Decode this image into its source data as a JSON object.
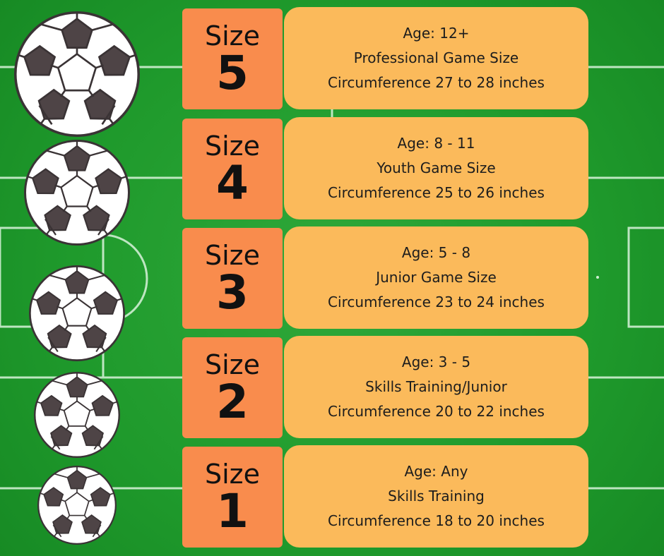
{
  "colors": {
    "field": "#1f9a2c",
    "size_box": "#f98c4d",
    "info_box": "#fbba5b",
    "ball_patch": "#4e4446"
  },
  "sizes": [
    {
      "label": "Size",
      "number": "5",
      "age": "Age: 12+",
      "type": "Professional Game Size",
      "circumference": "Circumference 27 to 28 inches"
    },
    {
      "label": "Size",
      "number": "4",
      "age": "Age: 8 - 11",
      "type": "Youth Game Size",
      "circumference": "Circumference 25 to 26 inches"
    },
    {
      "label": "Size",
      "number": "3",
      "age": "Age: 5 - 8",
      "type": "Junior Game Size",
      "circumference": "Circumference 23 to 24 inches"
    },
    {
      "label": "Size",
      "number": "2",
      "age": "Age: 3 - 5",
      "type": "Skills Training/Junior",
      "circumference": "Circumference 20 to 22 inches"
    },
    {
      "label": "Size",
      "number": "1",
      "age": "Age: Any",
      "type": "Skills Training",
      "circumference": "Circumference 18 to 20 inches"
    }
  ]
}
